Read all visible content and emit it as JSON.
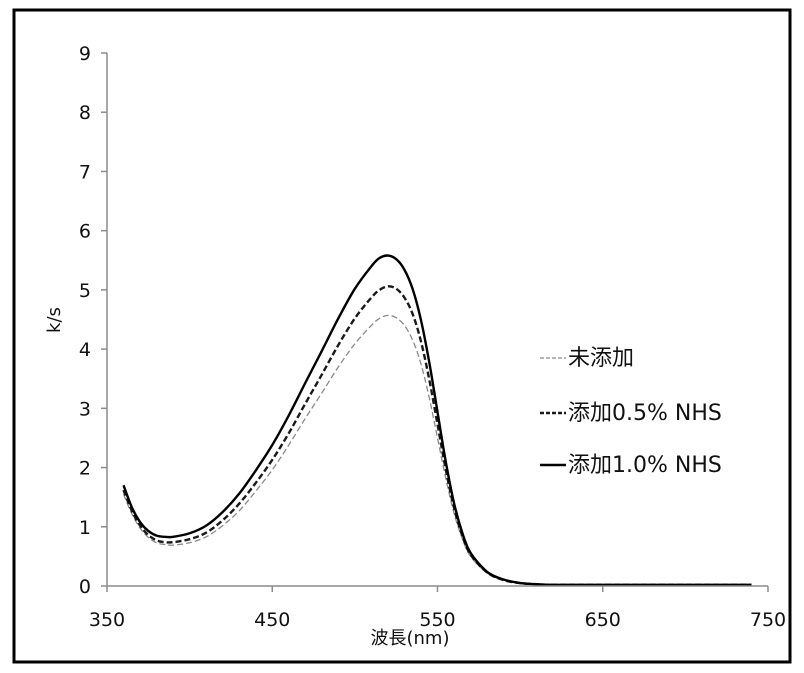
{
  "colors": {
    "background": "#ffffff",
    "frame": "#000000",
    "axis": "#8c8c8c",
    "series_untreated": "#8a8a8a",
    "series_05": "#1a1a1a",
    "series_10": "#000000"
  },
  "chart_data": {
    "type": "line",
    "title": "",
    "xlabel": "波長(nm)",
    "ylabel": "k/s",
    "xlim": [
      350,
      750
    ],
    "ylim": [
      0,
      9
    ],
    "x_ticks": [
      "350",
      "450",
      "550",
      "650",
      "750"
    ],
    "y_ticks": [
      "0",
      "1",
      "2",
      "3",
      "4",
      "5",
      "6",
      "7",
      "8",
      "9"
    ],
    "grid": false,
    "legend_position": "right",
    "series": [
      {
        "name": "未添加",
        "style": "dashed",
        "x": [
          360,
          365,
          370,
          375,
          380,
          385,
          390,
          400,
          410,
          420,
          430,
          440,
          450,
          460,
          470,
          480,
          490,
          500,
          510,
          515,
          520,
          525,
          530,
          535,
          540,
          545,
          550,
          555,
          560,
          565,
          570,
          580,
          590,
          600,
          610,
          620,
          640,
          660,
          700,
          740
        ],
        "y": [
          1.55,
          1.22,
          0.98,
          0.82,
          0.73,
          0.7,
          0.69,
          0.73,
          0.83,
          1.02,
          1.27,
          1.6,
          1.96,
          2.38,
          2.83,
          3.26,
          3.7,
          4.09,
          4.4,
          4.52,
          4.57,
          4.53,
          4.4,
          4.15,
          3.75,
          3.18,
          2.5,
          1.82,
          1.23,
          0.8,
          0.5,
          0.22,
          0.1,
          0.05,
          0.03,
          0.02,
          0.02,
          0.02,
          0.02,
          0.02
        ]
      },
      {
        "name": "添加0.5% NHS",
        "style": "dashed",
        "x": [
          360,
          365,
          370,
          375,
          380,
          385,
          390,
          400,
          410,
          420,
          430,
          440,
          450,
          460,
          470,
          480,
          490,
          500,
          510,
          515,
          520,
          525,
          530,
          535,
          540,
          545,
          550,
          555,
          560,
          565,
          570,
          580,
          590,
          600,
          610,
          620,
          640,
          660,
          700,
          740
        ],
        "y": [
          1.62,
          1.27,
          1.02,
          0.86,
          0.77,
          0.74,
          0.74,
          0.79,
          0.9,
          1.11,
          1.39,
          1.74,
          2.13,
          2.58,
          3.08,
          3.57,
          4.07,
          4.52,
          4.87,
          5.0,
          5.06,
          5.02,
          4.87,
          4.59,
          4.13,
          3.49,
          2.73,
          1.97,
          1.32,
          0.85,
          0.53,
          0.23,
          0.1,
          0.05,
          0.03,
          0.02,
          0.02,
          0.02,
          0.02,
          0.02
        ]
      },
      {
        "name": "添加1.0% NHS",
        "style": "solid",
        "x": [
          360,
          365,
          370,
          375,
          380,
          385,
          390,
          400,
          410,
          420,
          430,
          440,
          450,
          460,
          470,
          480,
          490,
          500,
          510,
          515,
          520,
          525,
          530,
          535,
          540,
          545,
          550,
          555,
          560,
          565,
          570,
          580,
          590,
          600,
          610,
          620,
          640,
          660,
          700,
          740
        ],
        "y": [
          1.7,
          1.33,
          1.08,
          0.93,
          0.85,
          0.83,
          0.83,
          0.89,
          1.02,
          1.25,
          1.56,
          1.95,
          2.38,
          2.88,
          3.43,
          3.97,
          4.52,
          5.02,
          5.4,
          5.54,
          5.58,
          5.52,
          5.34,
          5.01,
          4.49,
          3.78,
          2.94,
          2.1,
          1.4,
          0.9,
          0.56,
          0.24,
          0.11,
          0.05,
          0.03,
          0.02,
          0.02,
          0.02,
          0.02,
          0.02
        ]
      }
    ]
  }
}
